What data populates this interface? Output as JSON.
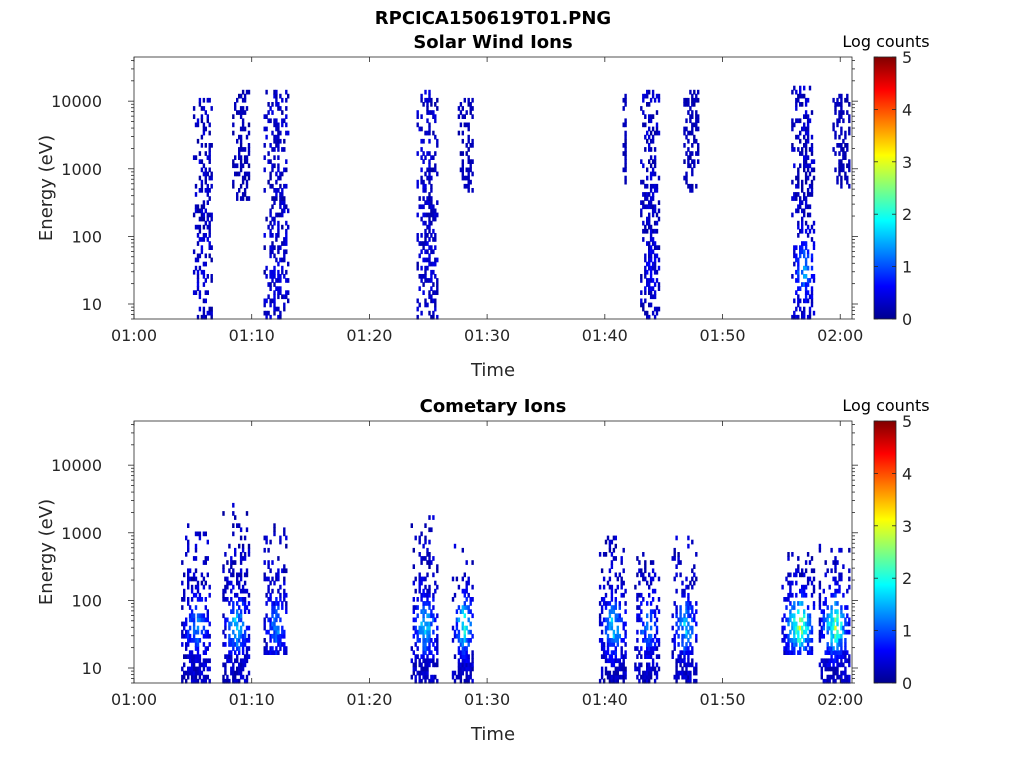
{
  "figure": {
    "title": "RPCICA150619T01.PNG",
    "colors": {
      "axis": "#262626",
      "background": "#ffffff",
      "colormap": "jet"
    }
  },
  "chart_data": [
    {
      "type": "heatmap",
      "title": "Solar Wind Ions",
      "xlabel": "Time",
      "ylabel": "Energy (eV)",
      "xlim": [
        "01:00",
        "02:01"
      ],
      "ylim": [
        6,
        45000
      ],
      "yscale": "log",
      "xticks": [
        "01:00",
        "01:10",
        "01:20",
        "01:30",
        "01:40",
        "01:50",
        "02:00"
      ],
      "yticks": [
        10,
        100,
        1000,
        10000
      ],
      "ytick_labels": [
        "10",
        "100",
        "1000",
        "10000"
      ],
      "colorbar": {
        "label": "Log counts",
        "range": [
          0,
          5
        ],
        "ticks": [
          "0",
          "1",
          "2",
          "3",
          "4",
          "5"
        ]
      },
      "bursts": [
        {
          "start": "01:05:00",
          "end": "01:06:40",
          "emin": 6,
          "emax": 10000,
          "peak_log_counts": 0.5
        },
        {
          "start": "01:08:20",
          "end": "01:09:50",
          "emin": 300,
          "emax": 14000,
          "peak_log_counts": 0.3
        },
        {
          "start": "01:11:00",
          "end": "01:13:10",
          "emin": 6,
          "emax": 14000,
          "peak_log_counts": 0.5
        },
        {
          "start": "01:24:00",
          "end": "01:25:50",
          "emin": 6,
          "emax": 14000,
          "peak_log_counts": 0.5
        },
        {
          "start": "01:27:30",
          "end": "01:28:50",
          "emin": 400,
          "emax": 10000,
          "peak_log_counts": 0.3
        },
        {
          "start": "01:41:30",
          "end": "01:41:50",
          "emin": 400,
          "emax": 14000,
          "peak_log_counts": 0.3
        },
        {
          "start": "01:43:00",
          "end": "01:44:40",
          "emin": 6,
          "emax": 14000,
          "peak_log_counts": 0.6
        },
        {
          "start": "01:46:40",
          "end": "01:48:00",
          "emin": 400,
          "emax": 13000,
          "peak_log_counts": 0.3
        },
        {
          "start": "01:55:50",
          "end": "01:57:50",
          "emin": 6,
          "emax": 16000,
          "peak_log_counts": 1.7
        },
        {
          "start": "01:59:20",
          "end": "02:00:50",
          "emin": 500,
          "emax": 12000,
          "peak_log_counts": 0.3
        }
      ]
    },
    {
      "type": "heatmap",
      "title": "Cometary Ions",
      "xlabel": "Time",
      "ylabel": "Energy (eV)",
      "xlim": [
        "01:00",
        "02:01"
      ],
      "ylim": [
        6,
        45000
      ],
      "yscale": "log",
      "xticks": [
        "01:00",
        "01:10",
        "01:20",
        "01:30",
        "01:40",
        "01:50",
        "02:00"
      ],
      "yticks": [
        10,
        100,
        1000,
        10000
      ],
      "ytick_labels": [
        "10",
        "100",
        "1000",
        "10000"
      ],
      "colorbar": {
        "label": "Log counts",
        "range": [
          0,
          5
        ],
        "ticks": [
          "0",
          "1",
          "2",
          "3",
          "4",
          "5"
        ]
      },
      "bursts": [
        {
          "start": "01:04:00",
          "end": "01:06:30",
          "emin": 6,
          "emax": 1200,
          "peak_log_counts": 1.5
        },
        {
          "start": "01:07:30",
          "end": "01:09:50",
          "emin": 6,
          "emax": 2500,
          "peak_log_counts": 2.0
        },
        {
          "start": "01:11:00",
          "end": "01:13:00",
          "emin": 15,
          "emax": 1300,
          "peak_log_counts": 1.5
        },
        {
          "start": "01:23:30",
          "end": "01:25:50",
          "emin": 6,
          "emax": 1600,
          "peak_log_counts": 2.0
        },
        {
          "start": "01:27:00",
          "end": "01:28:50",
          "emin": 6,
          "emax": 600,
          "peak_log_counts": 2.5
        },
        {
          "start": "01:39:30",
          "end": "01:41:50",
          "emin": 6,
          "emax": 1000,
          "peak_log_counts": 2.0
        },
        {
          "start": "01:42:30",
          "end": "01:44:40",
          "emin": 6,
          "emax": 500,
          "peak_log_counts": 1.5
        },
        {
          "start": "01:45:40",
          "end": "01:47:50",
          "emin": 6,
          "emax": 1000,
          "peak_log_counts": 2.0
        },
        {
          "start": "01:55:00",
          "end": "01:57:50",
          "emin": 15,
          "emax": 500,
          "peak_log_counts": 3.2
        },
        {
          "start": "01:58:10",
          "end": "02:00:50",
          "emin": 6,
          "emax": 700,
          "peak_log_counts": 3.0
        }
      ]
    }
  ]
}
